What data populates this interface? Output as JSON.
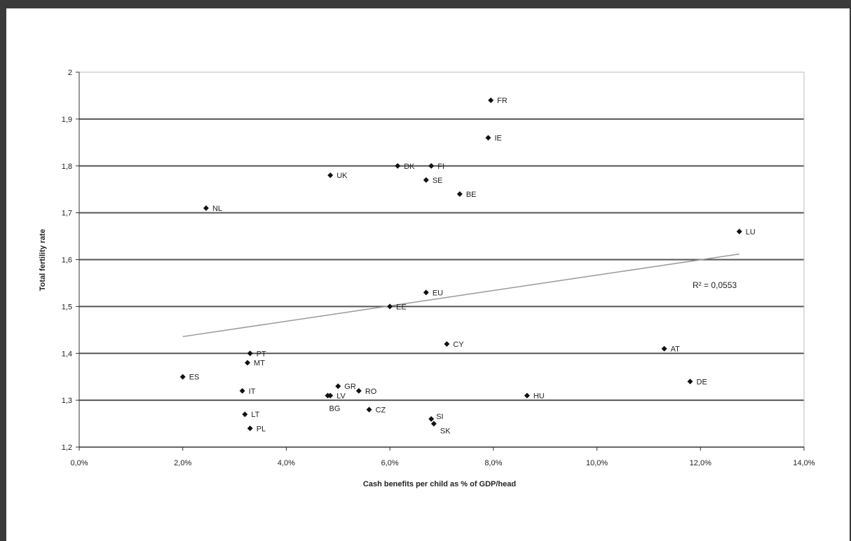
{
  "chart_data": {
    "type": "scatter",
    "title": "",
    "xlabel": "Cash benefits per child as % of GDP/head",
    "ylabel": "Total fertility rate",
    "xlim": [
      0,
      14
    ],
    "ylim": [
      1.2,
      2.0
    ],
    "x_ticks": [
      0,
      2,
      4,
      6,
      8,
      10,
      12,
      14
    ],
    "x_tick_labels": [
      "0,0%",
      "2,0%",
      "4,0%",
      "6,0%",
      "8,0%",
      "10,0%",
      "12,0%",
      "14,0%"
    ],
    "y_ticks": [
      1.2,
      1.3,
      1.4,
      1.5,
      1.6,
      1.7,
      1.8,
      1.9,
      2.0
    ],
    "y_tick_labels": [
      "1,2",
      "1,3",
      "1,4",
      "1,5",
      "1,6",
      "1,7",
      "1,8",
      "1,9",
      "2"
    ],
    "grid": true,
    "legend": "none",
    "marker_color": "#111111",
    "grid_color": "#555555",
    "points": [
      {
        "label": "FR",
        "x": 7.95,
        "y": 1.94
      },
      {
        "label": "IE",
        "x": 7.9,
        "y": 1.86
      },
      {
        "label": "DK",
        "x": 6.15,
        "y": 1.8
      },
      {
        "label": "FI",
        "x": 6.8,
        "y": 1.8
      },
      {
        "label": "UK",
        "x": 4.85,
        "y": 1.78
      },
      {
        "label": "SE",
        "x": 6.7,
        "y": 1.77
      },
      {
        "label": "BE",
        "x": 7.35,
        "y": 1.74
      },
      {
        "label": "NL",
        "x": 2.45,
        "y": 1.71
      },
      {
        "label": "LU",
        "x": 12.75,
        "y": 1.66
      },
      {
        "label": "EU",
        "x": 6.7,
        "y": 1.53
      },
      {
        "label": "EE",
        "x": 6.0,
        "y": 1.5
      },
      {
        "label": "CY",
        "x": 7.1,
        "y": 1.42
      },
      {
        "label": "AT",
        "x": 11.3,
        "y": 1.41
      },
      {
        "label": "PT",
        "x": 3.3,
        "y": 1.4
      },
      {
        "label": "MT",
        "x": 3.25,
        "y": 1.38
      },
      {
        "label": "ES",
        "x": 2.0,
        "y": 1.35
      },
      {
        "label": "DE",
        "x": 11.8,
        "y": 1.34
      },
      {
        "label": "GR",
        "x": 5.0,
        "y": 1.33
      },
      {
        "label": "IT",
        "x": 3.15,
        "y": 1.32
      },
      {
        "label": "RO",
        "x": 5.4,
        "y": 1.32
      },
      {
        "label": "LV",
        "x": 4.85,
        "y": 1.31
      },
      {
        "label": "BG",
        "x": 4.8,
        "y": 1.31
      },
      {
        "label": "HU",
        "x": 8.65,
        "y": 1.31
      },
      {
        "label": "CZ",
        "x": 5.6,
        "y": 1.28
      },
      {
        "label": "LT",
        "x": 3.2,
        "y": 1.27
      },
      {
        "label": "SI",
        "x": 6.8,
        "y": 1.26
      },
      {
        "label": "SK",
        "x": 6.85,
        "y": 1.25
      },
      {
        "label": "PL",
        "x": 3.3,
        "y": 1.24
      }
    ],
    "trendline": {
      "x": [
        0,
        12.75
      ],
      "y": [
        1.403,
        1.612
      ],
      "color": "#999999"
    },
    "annotation": "R² = 0,0553"
  }
}
